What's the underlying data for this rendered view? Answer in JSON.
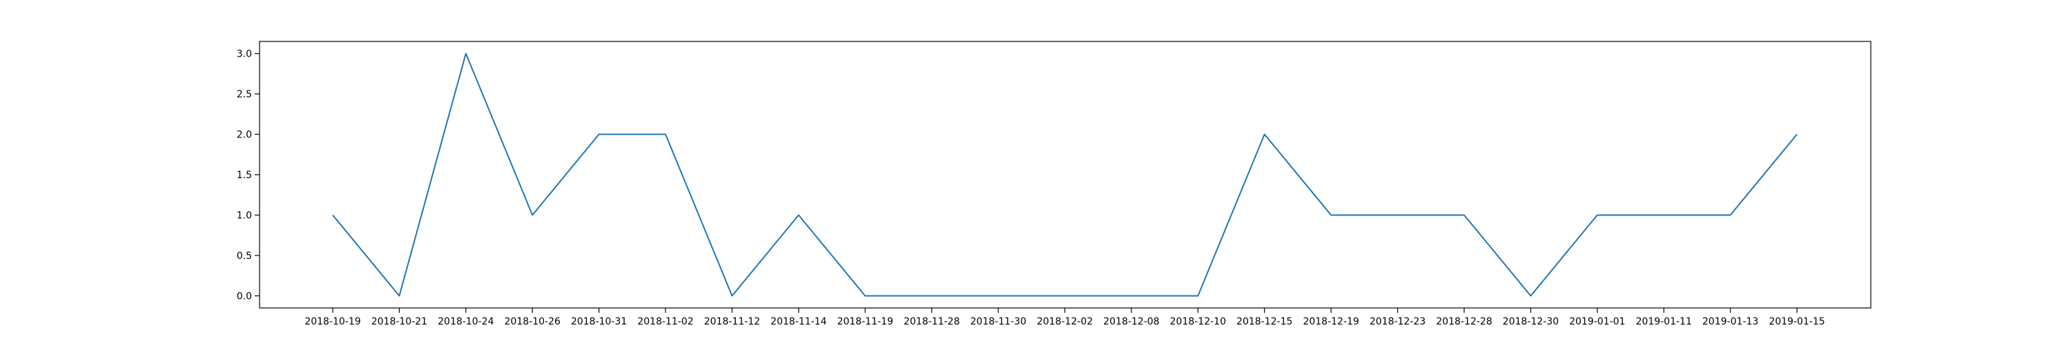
{
  "chart_data": {
    "type": "line",
    "title": "",
    "xlabel": "",
    "ylabel": "",
    "categories": [
      "2018-10-19",
      "2018-10-21",
      "2018-10-24",
      "2018-10-26",
      "2018-10-31",
      "2018-11-02",
      "2018-11-12",
      "2018-11-14",
      "2018-11-19",
      "2018-11-28",
      "2018-11-30",
      "2018-12-02",
      "2018-12-08",
      "2018-12-10",
      "2018-12-15",
      "2018-12-19",
      "2018-12-23",
      "2018-12-28",
      "2018-12-30",
      "2019-01-01",
      "2019-01-11",
      "2019-01-13",
      "2019-01-15"
    ],
    "series": [
      {
        "values": [
          1,
          0,
          3,
          1,
          2,
          2,
          0,
          1,
          0,
          0,
          0,
          0,
          0,
          0,
          2,
          1,
          1,
          1,
          0,
          1,
          1,
          1,
          2
        ],
        "color": "#1f77b4"
      }
    ],
    "ylim": [
      -0.15,
      3.15
    ],
    "yticks": [
      "0.0",
      "0.5",
      "1.0",
      "1.5",
      "2.0",
      "2.5",
      "3.0"
    ],
    "ytick_values": [
      0,
      0.5,
      1.0,
      1.5,
      2.0,
      2.5,
      3.0
    ],
    "grid": false,
    "legend": "none"
  }
}
